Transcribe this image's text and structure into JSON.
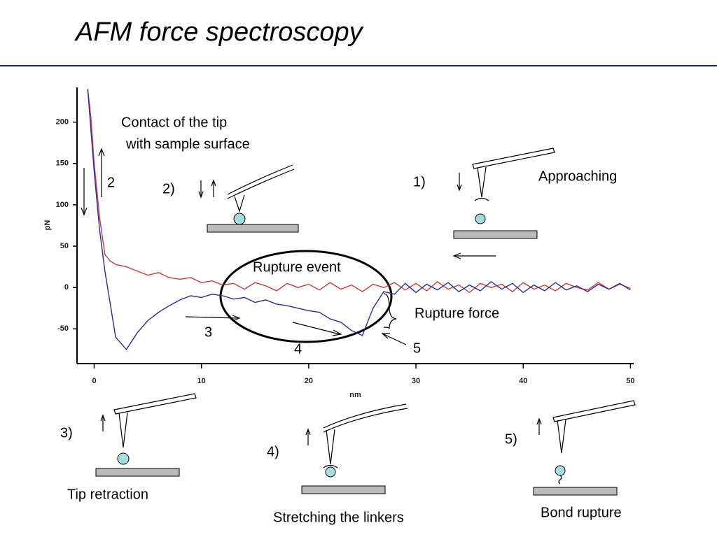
{
  "slide": {
    "title": "AFM force spectroscopy",
    "annotations": [
      "Contact of the tip",
      "with sample surface",
      "2",
      "2)",
      "1)",
      "Approaching",
      "Rupture event",
      "Rupture force",
      "3",
      "4",
      "5",
      "3)",
      "Tip retraction",
      "4)",
      "Stretching the linkers",
      "5)",
      "Bond rupture"
    ]
  },
  "chart_data": {
    "type": "line",
    "xlabel": "nm",
    "ylabel": "pN",
    "x": [
      -0.6,
      -0.3,
      0,
      0.5,
      1,
      1.5,
      2,
      3,
      4,
      5,
      6,
      7,
      8,
      9,
      10,
      11,
      12,
      13,
      14,
      15,
      16,
      17,
      18,
      19,
      20,
      21,
      22,
      23,
      24,
      25,
      26,
      27,
      28,
      29,
      30,
      31,
      32,
      33,
      34,
      35,
      36,
      37,
      38,
      39,
      40,
      41,
      42,
      43,
      44,
      45,
      46,
      47,
      48,
      49,
      50
    ],
    "series": [
      {
        "color": "#c83c3c",
        "values": [
          240,
          205,
          150,
          85,
          40,
          32,
          28,
          25,
          20,
          15,
          18,
          12,
          10,
          12,
          6,
          8,
          3,
          5,
          -2,
          6,
          2,
          -4,
          5,
          0,
          4,
          -3,
          6,
          -2,
          3,
          -5,
          4,
          0,
          6,
          -3,
          5,
          -4,
          7,
          -2,
          3,
          -6,
          5,
          0,
          4,
          -5,
          6,
          -2,
          3,
          -4,
          5,
          0,
          -3,
          6,
          -2,
          4,
          -1
        ]
      },
      {
        "color": "#2b2b9a",
        "values": [
          240,
          190,
          140,
          70,
          20,
          -20,
          -60,
          -75,
          -55,
          -40,
          -30,
          -22,
          -15,
          -10,
          -12,
          -8,
          -10,
          -14,
          -12,
          -18,
          -15,
          -20,
          -22,
          -25,
          -28,
          -30,
          -38,
          -42,
          -52,
          -58,
          -25,
          -5,
          -8,
          5,
          -6,
          4,
          -3,
          6,
          -5,
          3,
          -4,
          7,
          -2,
          5,
          -6,
          3,
          -4,
          6,
          -3,
          2,
          -5,
          4,
          -2,
          5,
          -3
        ]
      }
    ],
    "xlim": [
      -1.6,
      50.3
    ],
    "ylim": [
      -92,
      242
    ],
    "xticks": [
      0,
      10,
      20,
      30,
      40,
      50
    ],
    "yticks": [
      -50,
      0,
      50,
      100,
      150,
      200
    ]
  }
}
